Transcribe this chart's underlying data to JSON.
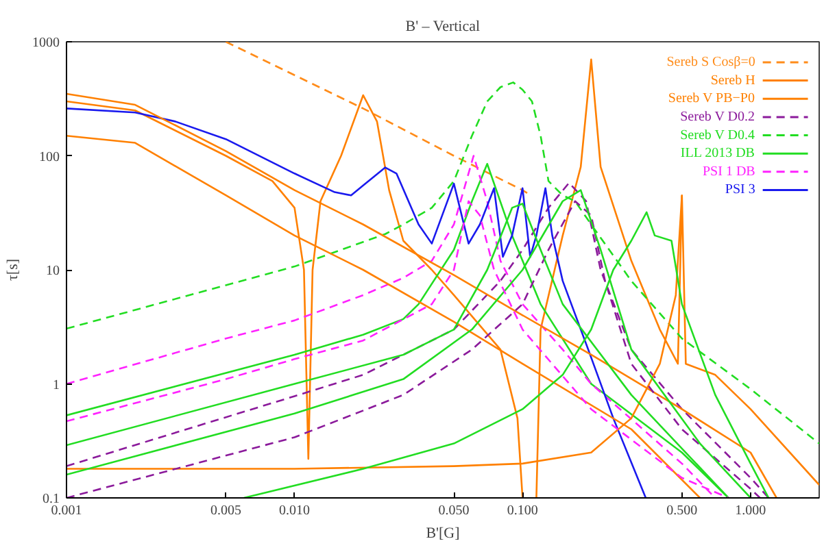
{
  "chart_data": {
    "type": "line",
    "title": "B' – Vertical",
    "xlabel": "B'[G]",
    "ylabel": "τ[s]",
    "log": "xy",
    "grid": false,
    "legend": "top right",
    "marker": "none",
    "xlim": [
      0.001,
      2
    ],
    "ylim": [
      0.1,
      1000
    ],
    "xticks": [
      {
        "value": 0.001,
        "label": "0.001"
      },
      {
        "value": 0.005,
        "label": "0.005"
      },
      {
        "value": 0.01,
        "label": "0.010"
      },
      {
        "value": 0.05,
        "label": "0.050"
      },
      {
        "value": 0.1,
        "label": "0.100"
      },
      {
        "value": 0.5,
        "label": "0.500"
      },
      {
        "value": 1,
        "label": "1.000"
      }
    ],
    "yticks": [
      0.1,
      1,
      10,
      100,
      1000
    ],
    "series": [
      {
        "name": "Sereb S Cosβ=0",
        "color": "#ff8c1a",
        "line_style": "dashed",
        "x": [
          0.005,
          0.02,
          0.05,
          0.1,
          0.105
        ],
        "values": [
          1000,
          260,
          100,
          50,
          47
        ]
      },
      {
        "name": "Sereb H",
        "color": "#ff8000",
        "line_style": "solid",
        "x": [
          0.001,
          0.002,
          0.005,
          0.008,
          0.01,
          0.011,
          0.0115,
          0.012,
          0.013,
          0.016,
          0.02,
          0.023,
          0.026,
          0.03,
          0.04,
          0.05,
          0.08,
          0.095,
          0.1
        ],
        "values": [
          300,
          250,
          100,
          60,
          35,
          10,
          0.22,
          10,
          40,
          100,
          340,
          200,
          50,
          18,
          10,
          6,
          2,
          0.5,
          0.1
        ]
      },
      {
        "name": "Sereb V PB−P0",
        "color": "#ff8000",
        "line_style": "solid",
        "x": [
          0.115,
          0.12,
          0.15,
          0.18,
          0.2,
          0.22,
          0.3,
          0.4,
          0.48,
          0.5,
          0.52,
          0.7,
          1,
          2
        ],
        "values": [
          0.1,
          3,
          20,
          80,
          700,
          80,
          12,
          3,
          1.5,
          45,
          1.5,
          1.2,
          0.6,
          0.13
        ]
      },
      {
        "name": "Sereb V D0.2",
        "color": "#8b1a9b",
        "line_style": "dashed",
        "x": [
          0.001,
          0.01,
          0.02,
          0.05,
          0.08,
          0.1,
          0.13,
          0.16,
          0.19,
          0.22,
          0.3,
          0.5,
          1,
          1.2
        ],
        "values": [
          0.19,
          0.78,
          1.2,
          3,
          8,
          15,
          35,
          58,
          40,
          10,
          2,
          0.6,
          0.15,
          0.1
        ]
      },
      {
        "name": "Sereb V D0.4",
        "color": "#22dd22",
        "line_style": "dashed",
        "x": [
          0.001,
          0.01,
          0.025,
          0.03,
          0.04,
          0.05,
          0.06,
          0.07,
          0.08,
          0.091,
          0.1,
          0.11,
          0.12,
          0.13,
          0.15,
          0.17,
          0.2,
          0.3,
          0.5,
          1,
          2
        ],
        "values": [
          3.05,
          10.7,
          20.6,
          25,
          35,
          60,
          150,
          300,
          400,
          440,
          380,
          300,
          150,
          60,
          45,
          40,
          25,
          8,
          2.5,
          0.9,
          0.3
        ]
      },
      {
        "name": "ILL 2013 DB",
        "color": "#22dd22",
        "line_style": "solid",
        "x": [
          0.001,
          0.01,
          0.02,
          0.03,
          0.035,
          0.05,
          0.06,
          0.07,
          0.09,
          0.12,
          0.2,
          0.5,
          0.8
        ],
        "values": [
          0.53,
          1.8,
          2.7,
          3.7,
          5,
          15,
          40,
          85,
          20,
          5,
          1,
          0.25,
          0.1
        ]
      },
      {
        "name": "PSI 1 DB",
        "color": "#ff22ff",
        "line_style": "dashed",
        "x": [
          0.001,
          0.005,
          0.01,
          0.02,
          0.03,
          0.04,
          0.05,
          0.061,
          0.07,
          0.08,
          0.1,
          0.15,
          0.2,
          0.5,
          0.7
        ],
        "values": [
          1.0,
          2.5,
          3.6,
          6,
          8.5,
          12,
          25,
          100,
          40,
          12,
          5,
          2,
          1,
          0.2,
          0.1
        ]
      },
      {
        "name": "PSI 3",
        "color": "#1a1aee",
        "line_style": "solid",
        "x": [
          0.001,
          0.002,
          0.003,
          0.005,
          0.01,
          0.015,
          0.0177,
          0.02,
          0.025,
          0.028,
          0.035,
          0.04,
          0.05,
          0.058,
          0.065,
          0.075,
          0.082,
          0.09,
          0.1,
          0.108,
          0.115,
          0.126,
          0.135,
          0.15,
          0.196,
          0.25,
          0.347
        ],
        "values": [
          260,
          240,
          200,
          140,
          70,
          48,
          45,
          55,
          79,
          70,
          25,
          17,
          57,
          17,
          25,
          52,
          13,
          20,
          52,
          13,
          20,
          52,
          20,
          8,
          1.9,
          0.5,
          0.1
        ]
      },
      {
        "color": "#ff8000",
        "line_style": "solid",
        "x": [
          0.001,
          0.002,
          0.005,
          0.01,
          0.02,
          0.05,
          0.1,
          0.2,
          0.5,
          1,
          1.3
        ],
        "values": [
          350,
          280,
          110,
          50,
          25,
          9,
          4,
          1.8,
          0.6,
          0.25,
          0.1
        ]
      },
      {
        "color": "#ff8000",
        "line_style": "solid",
        "x": [
          0.001,
          0.002,
          0.005,
          0.01,
          0.02,
          0.05,
          0.1,
          0.3,
          0.6
        ],
        "values": [
          150,
          130,
          45,
          20,
          10,
          3.5,
          1.5,
          0.4,
          0.1
        ]
      },
      {
        "color": "#ff8000",
        "line_style": "solid",
        "x": [
          0.001,
          0.01,
          0.05,
          0.1,
          0.2,
          0.3,
          0.4,
          0.47,
          0.5
        ],
        "values": [
          0.18,
          0.18,
          0.19,
          0.2,
          0.25,
          0.5,
          1.5,
          6,
          45
        ]
      },
      {
        "color": "#8b1a9b",
        "line_style": "dashed",
        "x": [
          0.001,
          0.01,
          0.03,
          0.06,
          0.1,
          0.13,
          0.17,
          0.2,
          0.23,
          0.3,
          0.5,
          1,
          1.1
        ],
        "values": [
          0.1,
          0.34,
          0.8,
          2,
          5,
          15,
          40,
          30,
          8,
          1.5,
          0.4,
          0.12,
          0.1
        ]
      },
      {
        "color": "#22dd22",
        "line_style": "solid",
        "x": [
          0.001,
          0.01,
          0.03,
          0.05,
          0.07,
          0.09,
          0.1,
          0.12,
          0.15,
          0.3,
          0.8
        ],
        "values": [
          0.29,
          1.0,
          1.8,
          3,
          10,
          35,
          38,
          15,
          5,
          0.8,
          0.1
        ]
      },
      {
        "color": "#22dd22",
        "line_style": "solid",
        "x": [
          0.001,
          0.01,
          0.03,
          0.06,
          0.1,
          0.15,
          0.18,
          0.22,
          0.3,
          0.6,
          1
        ],
        "values": [
          0.16,
          0.55,
          1.1,
          3,
          10,
          40,
          50,
          15,
          2,
          0.3,
          0.1
        ]
      },
      {
        "color": "#22dd22",
        "line_style": "solid",
        "x": [
          0.006,
          0.02,
          0.05,
          0.1,
          0.15,
          0.2,
          0.25,
          0.3,
          0.35,
          0.38,
          0.45,
          0.5,
          0.7,
          1,
          1.2
        ],
        "values": [
          0.1,
          0.18,
          0.3,
          0.6,
          1.2,
          3,
          10,
          18,
          32,
          20,
          18,
          5,
          0.8,
          0.2,
          0.1
        ]
      },
      {
        "color": "#ff22ff",
        "line_style": "dashed",
        "x": [
          0.001,
          0.005,
          0.01,
          0.02,
          0.04,
          0.05,
          0.058,
          0.065,
          0.075,
          0.1,
          0.2,
          0.5,
          0.8
        ],
        "values": [
          0.47,
          1.1,
          1.65,
          2.4,
          5,
          10,
          40,
          30,
          10,
          3,
          0.6,
          0.15,
          0.1
        ]
      }
    ]
  }
}
